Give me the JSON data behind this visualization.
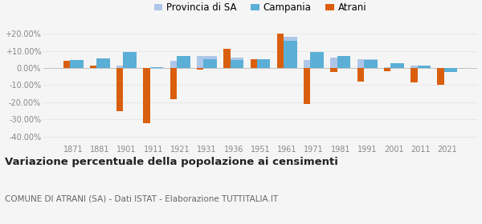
{
  "years": [
    1871,
    1881,
    1901,
    1911,
    1921,
    1931,
    1936,
    1951,
    1961,
    1971,
    1981,
    1991,
    2001,
    2011,
    2021
  ],
  "atrani": [
    4.0,
    1.5,
    -25.0,
    -32.0,
    -18.0,
    -1.0,
    11.0,
    5.0,
    20.0,
    -21.0,
    -2.5,
    -8.0,
    -2.0,
    -8.5,
    -10.0
  ],
  "provincia_sa": [
    3.5,
    1.0,
    1.5,
    -0.5,
    4.0,
    7.0,
    6.0,
    5.0,
    18.0,
    4.5,
    6.0,
    5.0,
    0.5,
    1.5,
    -2.0
  ],
  "campania": [
    4.5,
    5.5,
    9.5,
    0.5,
    7.0,
    5.0,
    4.5,
    5.0,
    16.0,
    9.5,
    7.0,
    4.5,
    3.0,
    1.5,
    -2.5
  ],
  "atrani_color": "#d95f0e",
  "provincia_color": "#aec6e8",
  "campania_color": "#5bafd6",
  "title": "Variazione percentuale della popolazione ai censimenti",
  "subtitle": "COMUNE DI ATRANI (SA) - Dati ISTAT - Elaborazione TUTTITALIA.IT",
  "legend_labels": [
    "Atrani",
    "Provincia di SA",
    "Campania"
  ],
  "ylim": [
    -44,
    24
  ],
  "yticks": [
    -40,
    -30,
    -20,
    -10,
    0,
    10,
    20
  ],
  "bar_width": 0.25,
  "bg_color": "#f5f5f5",
  "grid_color": "#e8e8e8",
  "title_fontsize": 9.5,
  "subtitle_fontsize": 7.5,
  "legend_fontsize": 8.5,
  "tick_fontsize": 7,
  "axis_color": "#888888"
}
